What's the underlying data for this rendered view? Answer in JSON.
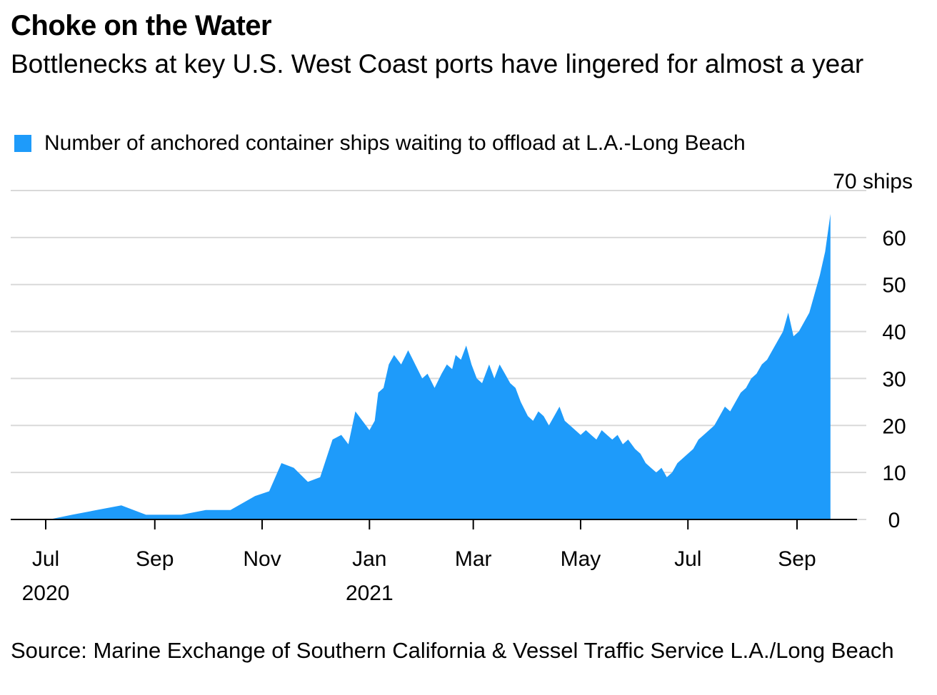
{
  "title": "Choke on the Water",
  "subtitle": "Bottlenecks at key U.S. West Coast ports have lingered for almost a year",
  "source": "Source: Marine Exchange of Southern California & Vessel Traffic Service L.A./Long Beach",
  "colors": {
    "series": "#1e9bfa",
    "grid": "#d9d9d9",
    "axis": "#000000"
  },
  "chart_data": {
    "type": "area",
    "legend": "Number of anchored container ships waiting to offload at L.A.-Long Beach",
    "legend_position": "top-left",
    "grid": true,
    "y_axis_side": "right",
    "ylim": [
      0,
      70
    ],
    "y_ticks": [
      {
        "value": 0,
        "label": "0"
      },
      {
        "value": 10,
        "label": "10"
      },
      {
        "value": 20,
        "label": "20"
      },
      {
        "value": 30,
        "label": "30"
      },
      {
        "value": 40,
        "label": "40"
      },
      {
        "value": 50,
        "label": "50"
      },
      {
        "value": 60,
        "label": "60"
      },
      {
        "value": 70,
        "label": "70 ships"
      }
    ],
    "xlim": [
      "2020-06-10",
      "2021-10-15"
    ],
    "x_ticks": [
      {
        "date": "2020-07-01",
        "label": "Jul",
        "year": "2020"
      },
      {
        "date": "2020-09-01",
        "label": "Sep",
        "year": ""
      },
      {
        "date": "2020-11-01",
        "label": "Nov",
        "year": ""
      },
      {
        "date": "2021-01-01",
        "label": "Jan",
        "year": "2021"
      },
      {
        "date": "2021-03-01",
        "label": "Mar",
        "year": ""
      },
      {
        "date": "2021-05-01",
        "label": "May",
        "year": ""
      },
      {
        "date": "2021-07-01",
        "label": "Jul",
        "year": ""
      },
      {
        "date": "2021-09-01",
        "label": "Sep",
        "year": ""
      }
    ],
    "series": [
      {
        "name": "Number of anchored container ships waiting to offload at L.A.-Long Beach",
        "points": [
          [
            "2020-07-03",
            0
          ],
          [
            "2020-07-16",
            1
          ],
          [
            "2020-07-30",
            2
          ],
          [
            "2020-08-13",
            3
          ],
          [
            "2020-08-27",
            1
          ],
          [
            "2020-09-02",
            1
          ],
          [
            "2020-09-16",
            1
          ],
          [
            "2020-09-30",
            2
          ],
          [
            "2020-10-14",
            2
          ],
          [
            "2020-10-28",
            5
          ],
          [
            "2020-11-05",
            6
          ],
          [
            "2020-11-12",
            12
          ],
          [
            "2020-11-19",
            11
          ],
          [
            "2020-11-27",
            8
          ],
          [
            "2020-12-04",
            9
          ],
          [
            "2020-12-11",
            17
          ],
          [
            "2020-12-16",
            18
          ],
          [
            "2020-12-20",
            16
          ],
          [
            "2020-12-24",
            23
          ],
          [
            "2020-12-28",
            21
          ],
          [
            "2021-01-01",
            19
          ],
          [
            "2021-01-04",
            21
          ],
          [
            "2021-01-06",
            27
          ],
          [
            "2021-01-09",
            28
          ],
          [
            "2021-01-12",
            33
          ],
          [
            "2021-01-15",
            35
          ],
          [
            "2021-01-19",
            33
          ],
          [
            "2021-01-23",
            36
          ],
          [
            "2021-01-27",
            33
          ],
          [
            "2021-01-31",
            30
          ],
          [
            "2021-02-03",
            31
          ],
          [
            "2021-02-07",
            28
          ],
          [
            "2021-02-11",
            31
          ],
          [
            "2021-02-14",
            33
          ],
          [
            "2021-02-17",
            32
          ],
          [
            "2021-02-19",
            35
          ],
          [
            "2021-02-22",
            34
          ],
          [
            "2021-02-25",
            37
          ],
          [
            "2021-02-28",
            33
          ],
          [
            "2021-03-03",
            30
          ],
          [
            "2021-03-06",
            29
          ],
          [
            "2021-03-10",
            33
          ],
          [
            "2021-03-13",
            30
          ],
          [
            "2021-03-16",
            33
          ],
          [
            "2021-03-19",
            31
          ],
          [
            "2021-03-22",
            29
          ],
          [
            "2021-03-25",
            28
          ],
          [
            "2021-03-28",
            25
          ],
          [
            "2021-04-01",
            22
          ],
          [
            "2021-04-04",
            21
          ],
          [
            "2021-04-07",
            23
          ],
          [
            "2021-04-10",
            22
          ],
          [
            "2021-04-13",
            20
          ],
          [
            "2021-04-16",
            22
          ],
          [
            "2021-04-19",
            24
          ],
          [
            "2021-04-22",
            21
          ],
          [
            "2021-04-25",
            20
          ],
          [
            "2021-04-28",
            19
          ],
          [
            "2021-05-01",
            18
          ],
          [
            "2021-05-04",
            19
          ],
          [
            "2021-05-07",
            18
          ],
          [
            "2021-05-10",
            17
          ],
          [
            "2021-05-13",
            19
          ],
          [
            "2021-05-16",
            18
          ],
          [
            "2021-05-19",
            17
          ],
          [
            "2021-05-22",
            18
          ],
          [
            "2021-05-25",
            16
          ],
          [
            "2021-05-28",
            17
          ],
          [
            "2021-06-01",
            15
          ],
          [
            "2021-06-04",
            14
          ],
          [
            "2021-06-07",
            12
          ],
          [
            "2021-06-10",
            11
          ],
          [
            "2021-06-13",
            10
          ],
          [
            "2021-06-16",
            11
          ],
          [
            "2021-06-19",
            9
          ],
          [
            "2021-06-22",
            10
          ],
          [
            "2021-06-25",
            12
          ],
          [
            "2021-06-28",
            13
          ],
          [
            "2021-07-01",
            14
          ],
          [
            "2021-07-04",
            15
          ],
          [
            "2021-07-07",
            17
          ],
          [
            "2021-07-10",
            18
          ],
          [
            "2021-07-13",
            19
          ],
          [
            "2021-07-16",
            20
          ],
          [
            "2021-07-19",
            22
          ],
          [
            "2021-07-22",
            24
          ],
          [
            "2021-07-25",
            23
          ],
          [
            "2021-07-28",
            25
          ],
          [
            "2021-07-31",
            27
          ],
          [
            "2021-08-03",
            28
          ],
          [
            "2021-08-06",
            30
          ],
          [
            "2021-08-09",
            31
          ],
          [
            "2021-08-12",
            33
          ],
          [
            "2021-08-15",
            34
          ],
          [
            "2021-08-18",
            36
          ],
          [
            "2021-08-21",
            38
          ],
          [
            "2021-08-24",
            40
          ],
          [
            "2021-08-27",
            44
          ],
          [
            "2021-08-30",
            39
          ],
          [
            "2021-09-02",
            40
          ],
          [
            "2021-09-05",
            42
          ],
          [
            "2021-09-08",
            44
          ],
          [
            "2021-09-11",
            48
          ],
          [
            "2021-09-14",
            52
          ],
          [
            "2021-09-17",
            57
          ],
          [
            "2021-09-20",
            65
          ]
        ]
      }
    ]
  }
}
